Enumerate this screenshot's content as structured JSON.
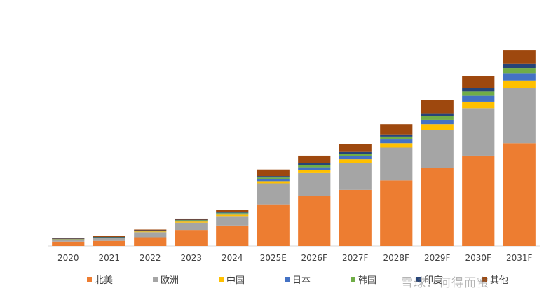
{
  "chart_data": {
    "type": "bar",
    "stacked": true,
    "categories": [
      "2020",
      "2021",
      "2022",
      "2023",
      "2024",
      "2025E",
      "2026F",
      "2027F",
      "2028F",
      "2029F",
      "2030F",
      "2031F"
    ],
    "ylim": [
      0,
      270
    ],
    "grid": false,
    "legend_position": "bottom",
    "series": [
      {
        "name": "北美",
        "color": "#ED7D31",
        "values": [
          6,
          7,
          12,
          22,
          28,
          57,
          69,
          77,
          90,
          107,
          124,
          141
        ]
      },
      {
        "name": "欧洲",
        "color": "#A5A5A5",
        "values": [
          3,
          4,
          7,
          10,
          13,
          29,
          31,
          37,
          45,
          52,
          65,
          76
        ]
      },
      {
        "name": "中国",
        "color": "#FFC000",
        "values": [
          0.5,
          0.5,
          1,
          1.5,
          2,
          3,
          4,
          5,
          6,
          8,
          9,
          10
        ]
      },
      {
        "name": "日本",
        "color": "#4472C4",
        "values": [
          0.3,
          0.4,
          0.6,
          1,
          1.5,
          3,
          4,
          4,
          5,
          6,
          8,
          10
        ]
      },
      {
        "name": "韩国",
        "color": "#70AD47",
        "values": [
          0.2,
          0.3,
          0.5,
          0.8,
          1,
          2,
          3,
          3,
          4,
          5,
          6,
          7
        ]
      },
      {
        "name": "印度",
        "color": "#264478",
        "values": [
          0.2,
          0.3,
          0.5,
          0.7,
          1,
          2,
          3,
          3,
          3,
          4,
          5,
          6
        ]
      },
      {
        "name": "其他",
        "color": "#9E480E",
        "values": [
          1,
          1,
          1,
          1.5,
          3,
          9,
          10,
          11,
          14,
          18,
          16,
          18
        ]
      }
    ]
  },
  "watermark": "雪球：何得而蜜"
}
